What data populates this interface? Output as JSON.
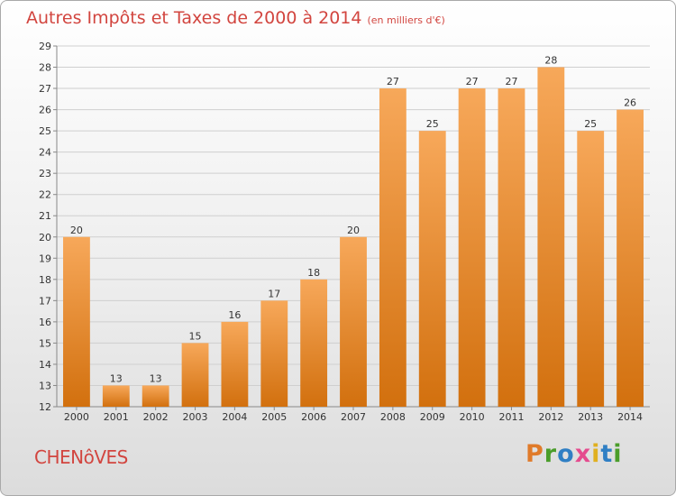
{
  "header": {
    "title": "Autres Impôts et Taxes de 2000 à 2014",
    "subtitle": "(en milliers d'€)"
  },
  "footer": {
    "city": "CHENôVES",
    "brand": "Proxiti",
    "brand_colors": [
      "#e07b2a",
      "#4a9d2a",
      "#2f7fc4",
      "#e54b8e",
      "#e0b020",
      "#2f7fc4",
      "#4a9d2a"
    ]
  },
  "chart_data": {
    "type": "bar",
    "categories": [
      "2000",
      "2001",
      "2002",
      "2003",
      "2004",
      "2005",
      "2006",
      "2007",
      "2008",
      "2009",
      "2010",
      "2011",
      "2012",
      "2013",
      "2014"
    ],
    "values": [
      20,
      13,
      13,
      15,
      16,
      17,
      18,
      20,
      27,
      25,
      27,
      27,
      28,
      25,
      26
    ],
    "ylim": [
      12,
      29
    ],
    "yticks": [
      "12",
      "13",
      "14",
      "15",
      "16",
      "17",
      "18",
      "19",
      "20",
      "21",
      "22",
      "23",
      "24",
      "25",
      "26",
      "27",
      "28",
      "29"
    ],
    "grid": true,
    "bar_color_top": "#f7a85a",
    "bar_color_bottom": "#d2700e"
  }
}
